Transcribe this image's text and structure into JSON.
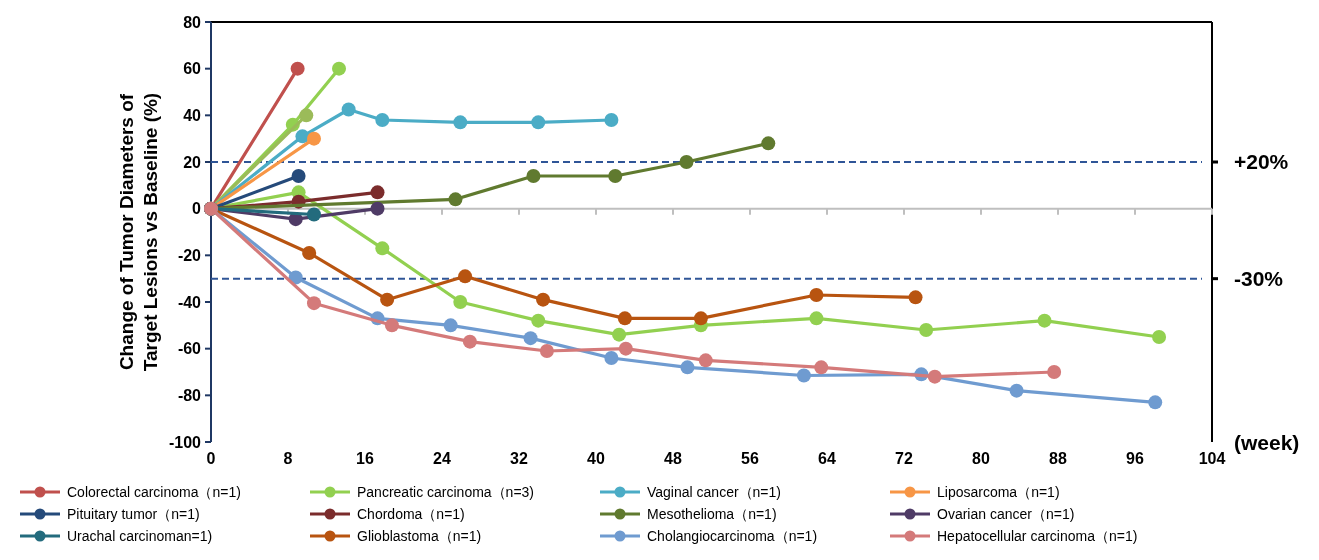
{
  "chart_data": {
    "type": "line",
    "ylabel": "Change of Tumor Diameters of Target Lesions vs Baseline (%)",
    "xlabel": "(week)",
    "xlim": [
      0,
      104
    ],
    "xticks": [
      0,
      8,
      16,
      24,
      32,
      40,
      48,
      56,
      64,
      72,
      80,
      88,
      96,
      104
    ],
    "ylim": [
      -100,
      80
    ],
    "yticks": [
      -100,
      -80,
      -60,
      -40,
      -20,
      0,
      20,
      40,
      60,
      80
    ],
    "grid": false,
    "legend": "bottom",
    "marker": "circle",
    "line_style": "solid",
    "ref_lines": [
      {
        "axis": "y",
        "value": 20,
        "label": "+20%",
        "color": "#2f5597",
        "line_style": "dashed"
      },
      {
        "axis": "y",
        "value": -30,
        "label": "-30%",
        "color": "#2f5597",
        "line_style": "dashed"
      }
    ],
    "series": [
      {
        "name": "Colorectal carcinoma（n=1)",
        "color": "#c0504d",
        "x": [
          0,
          9.0
        ],
        "values": [
          0,
          60
        ]
      },
      {
        "name": "Pancreatic carcinoma（n=3)",
        "color": "#92d050",
        "x": [
          0,
          8.5,
          13.3
        ],
        "values": [
          0,
          36,
          60
        ]
      },
      {
        "color": "#9bbb59",
        "x": [
          0,
          9.9
        ],
        "values": [
          0,
          40
        ]
      },
      {
        "color": "#92d050",
        "x": [
          0,
          9.1,
          17.8,
          25.9,
          34.0,
          42.4,
          50.9,
          62.9,
          74.3,
          86.6,
          98.5
        ],
        "values": [
          0,
          7,
          -17,
          -40,
          -48,
          -54,
          -50,
          -47,
          -52,
          -48,
          -55
        ]
      },
      {
        "name": "Vaginal cancer（n=1)",
        "color": "#4bacc6",
        "x": [
          0,
          9.5,
          14.3,
          17.8,
          25.9,
          34.0,
          41.6
        ],
        "values": [
          0,
          31,
          42.5,
          38,
          37,
          37,
          38
        ]
      },
      {
        "name": "Liposarcoma（n=1)",
        "color": "#f79646",
        "x": [
          0,
          10.7
        ],
        "values": [
          0,
          30
        ]
      },
      {
        "name": "Pituitary tumor（n=1)",
        "color": "#254a7a",
        "x": [
          0,
          9.1
        ],
        "values": [
          0,
          14
        ]
      },
      {
        "name": "Chordoma（n=1)",
        "color": "#7b2c2c",
        "x": [
          0,
          9.1,
          17.3
        ],
        "values": [
          0,
          3,
          7
        ]
      },
      {
        "name": "Mesothelioma（n=1)",
        "color": "#607a2f",
        "x": [
          0,
          9.0,
          17.3,
          25.4,
          33.5,
          42.0,
          49.4,
          57.9
        ],
        "values": [
          0,
          null,
          null,
          4,
          14,
          14,
          20,
          28
        ]
      },
      {
        "name": "Ovarian cancer（n=1)",
        "color": "#4f3b66",
        "x": [
          0,
          8.8,
          17.3
        ],
        "values": [
          0,
          -4.5,
          0
        ]
      },
      {
        "name": "Urachal carcinoman=1)",
        "color": "#236b7d",
        "x": [
          0,
          10.7
        ],
        "values": [
          0,
          -2.5
        ]
      },
      {
        "name": "Glioblastoma（n=1)",
        "color": "#b85410",
        "x": [
          0,
          10.2,
          18.3,
          26.4,
          34.5,
          43.0,
          50.9,
          62.9,
          73.2
        ],
        "values": [
          0,
          -19,
          -39,
          -29,
          -39,
          -47,
          -47,
          -37,
          -38
        ]
      },
      {
        "name": "Cholangiocarcinoma（n=1)",
        "color": "#6f9bd0",
        "x": [
          0,
          8.8,
          17.3,
          24.9,
          33.2,
          41.6,
          49.5,
          61.6,
          73.8,
          83.7,
          98.1
        ],
        "values": [
          0,
          -29.5,
          -47,
          -50,
          -55.5,
          -64,
          -68,
          -71.5,
          -71,
          -78,
          -83
        ]
      },
      {
        "name": "Hepatocellular carcinoma（n=1)",
        "color": "#d47a7a",
        "x": [
          0,
          10.7,
          18.8,
          26.9,
          34.9,
          43.1,
          51.4,
          63.4,
          75.2,
          87.6
        ],
        "values": [
          0,
          -40.5,
          -50,
          -57,
          -61,
          -60,
          -65,
          -68,
          -72,
          -70
        ]
      }
    ]
  }
}
